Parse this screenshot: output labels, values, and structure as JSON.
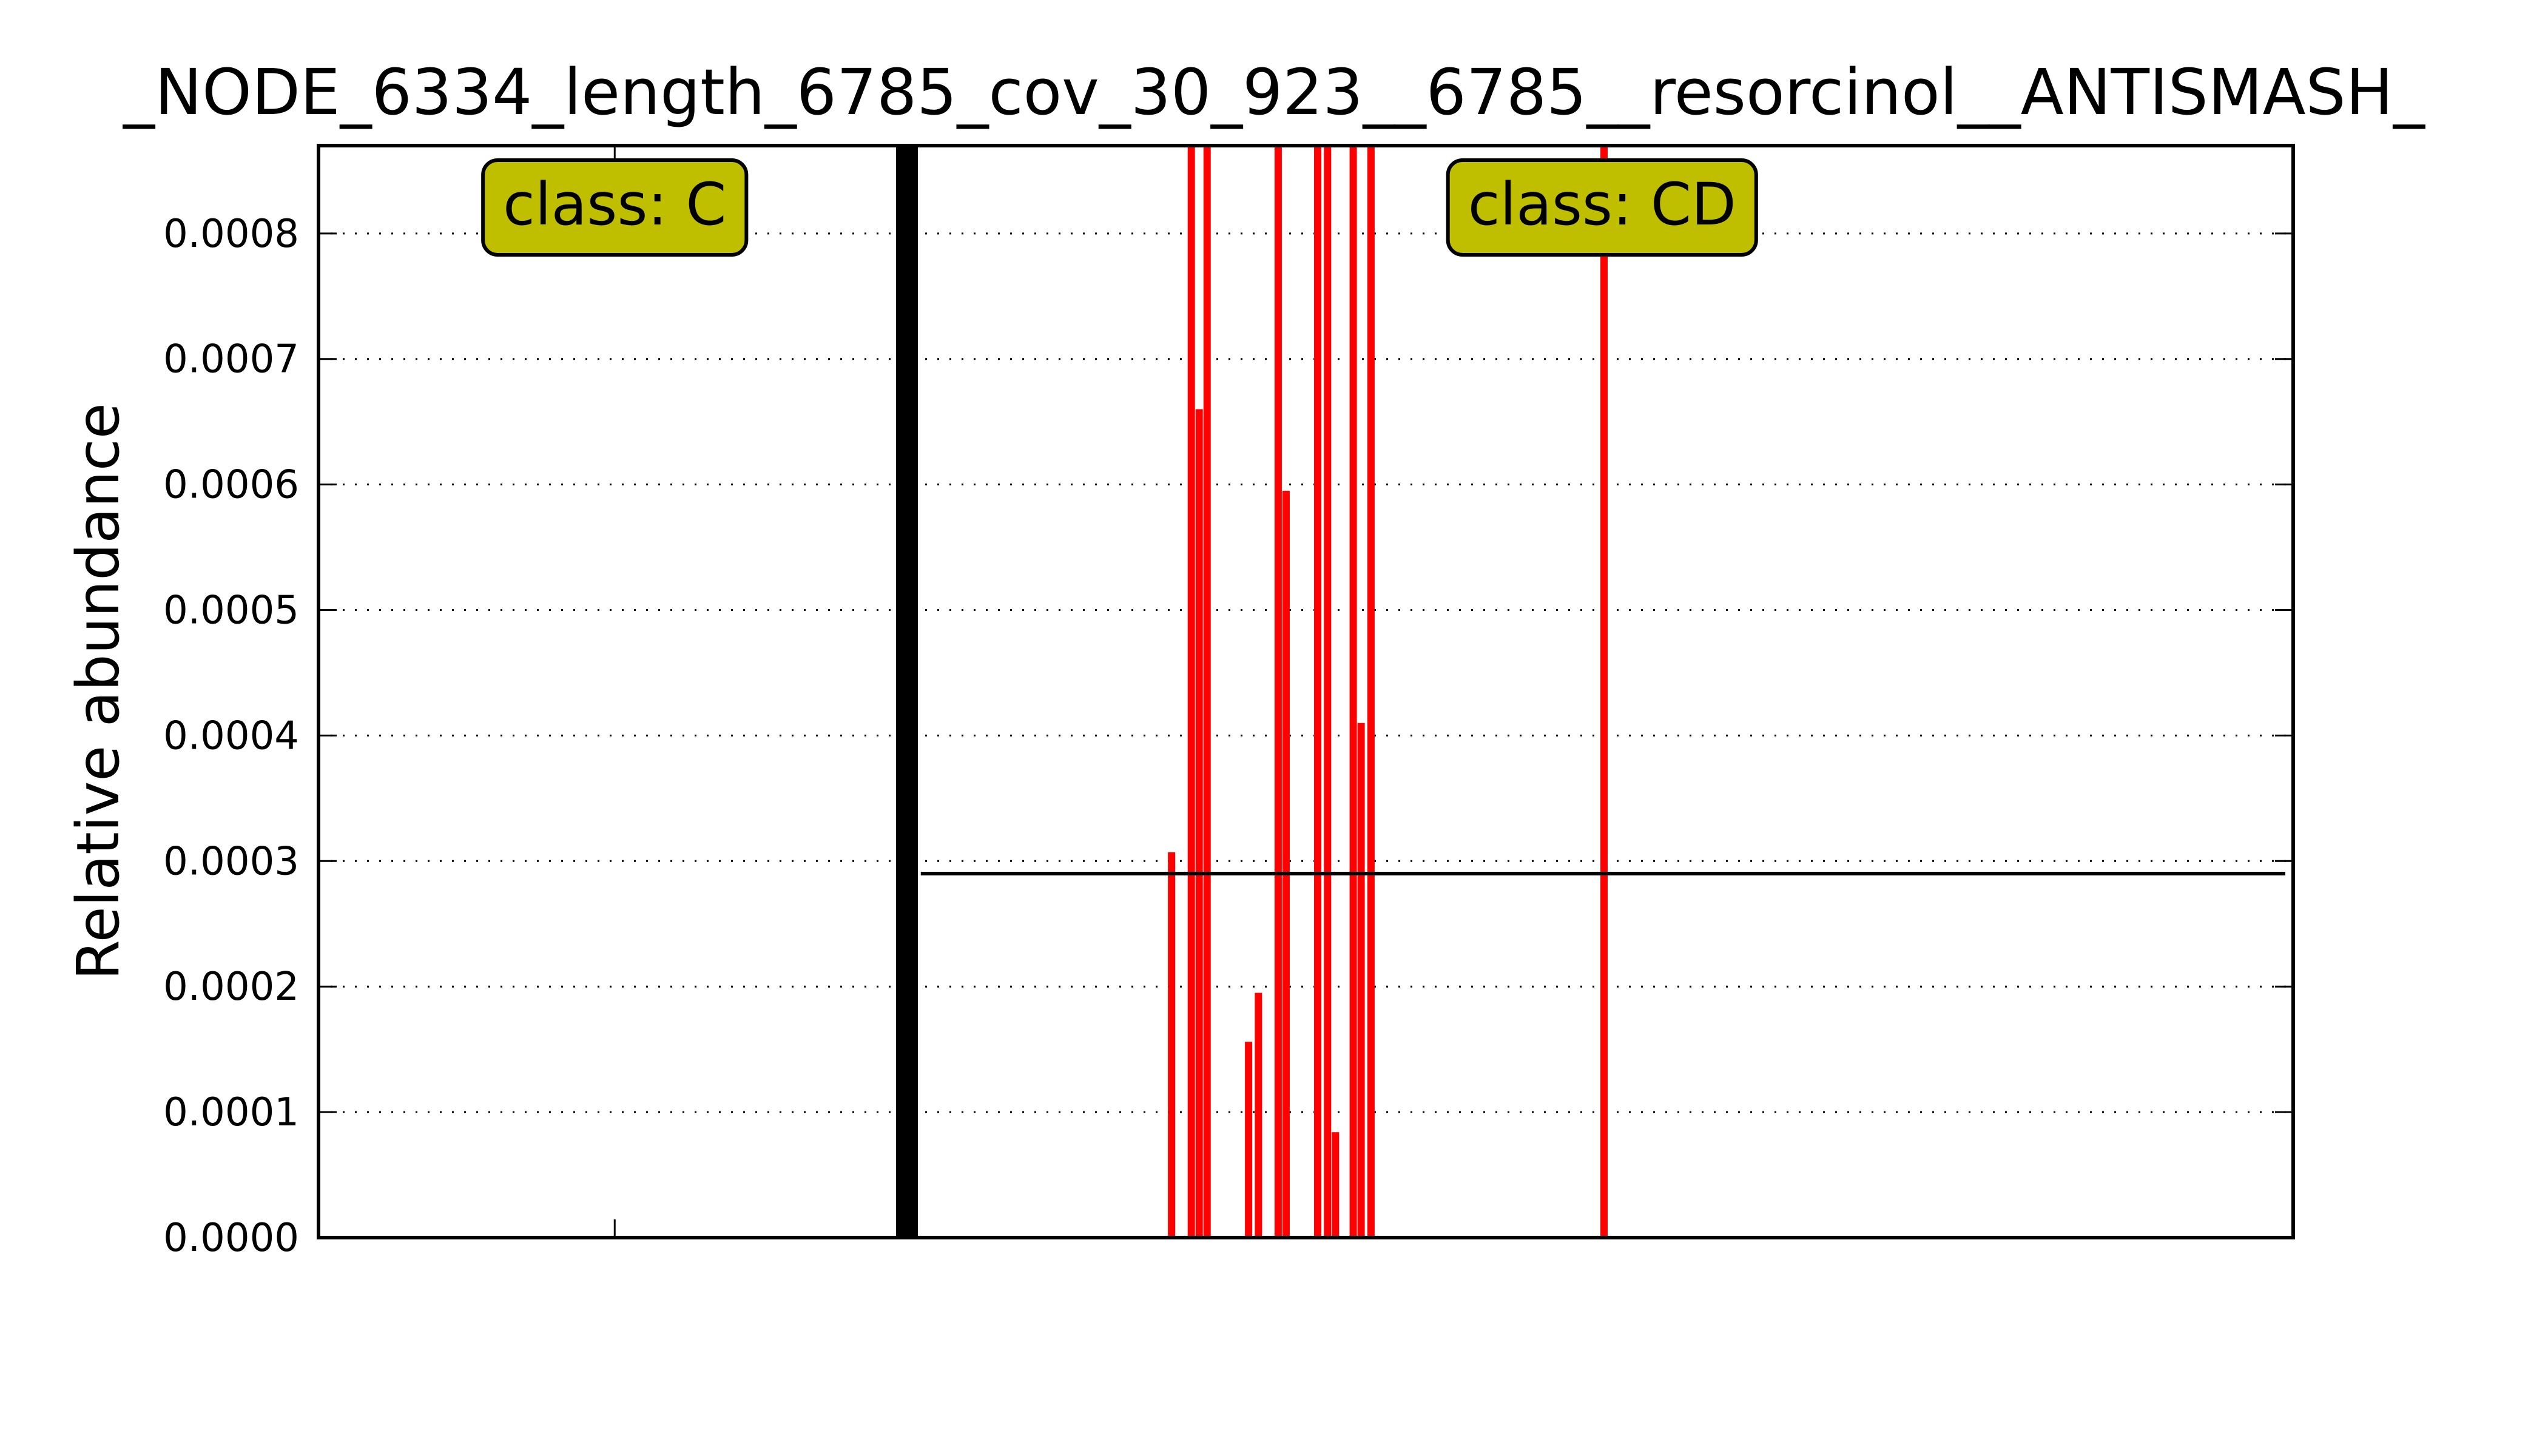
{
  "chart_data": {
    "type": "bar",
    "title": "_NODE_6334_length_6785_cov_30_923__6785__resorcinol__ANTISMASH_",
    "xlabel": "",
    "ylabel": "Relative abundance",
    "ylim": [
      0,
      0.00087
    ],
    "xlim": [
      0,
      100
    ],
    "yticks": [
      "0.0000",
      "0.0001",
      "0.0002",
      "0.0003",
      "0.0004",
      "0.0005",
      "0.0006",
      "0.0007",
      "0.0008"
    ],
    "grid": "horizontal dotted",
    "bar_color": "#ff0000",
    "boundary_color": "#000000",
    "box_color": "#bfbf00",
    "boundary_x": 29.8,
    "mean_line": {
      "value": 0.00029,
      "x_from": 30.5,
      "x_to": 99.6
    },
    "x_tick": 15,
    "annotations": [
      {
        "label": "class: C",
        "x": 15
      },
      {
        "label": "class: CD",
        "x": 65
      }
    ],
    "bars": [
      {
        "x": 43.2,
        "value": 0.000307
      },
      {
        "x": 44.2,
        "value": 0.00087
      },
      {
        "x": 44.6,
        "value": 0.00066
      },
      {
        "x": 45.0,
        "value": 0.00087
      },
      {
        "x": 47.1,
        "value": 0.000156
      },
      {
        "x": 47.6,
        "value": 0.000195
      },
      {
        "x": 48.6,
        "value": 0.00087
      },
      {
        "x": 49.0,
        "value": 0.000595
      },
      {
        "x": 50.6,
        "value": 0.00087
      },
      {
        "x": 51.1,
        "value": 0.00087
      },
      {
        "x": 51.5,
        "value": 8.4e-05
      },
      {
        "x": 52.4,
        "value": 0.00087
      },
      {
        "x": 52.8,
        "value": 0.00041
      },
      {
        "x": 53.3,
        "value": 0.00087
      },
      {
        "x": 65.1,
        "value": 0.00087
      }
    ]
  }
}
